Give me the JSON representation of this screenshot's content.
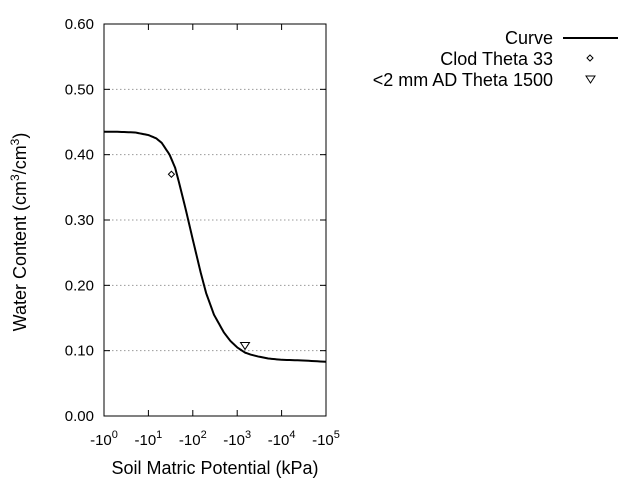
{
  "chart_data": {
    "type": "line",
    "xlabel": "Soil Matric Potential (kPa)",
    "ylabel_main": "Water Content (cm",
    "ylabel_sup1": "3",
    "ylabel_mid": "/cm",
    "ylabel_sup2": "3",
    "ylabel_end": ")",
    "x_scale": "log",
    "xlim": [
      1,
      100000
    ],
    "ylim": [
      0,
      0.6
    ],
    "grid": "horizontal-dotted",
    "legend_position": "top-right",
    "x_ticks": [
      {
        "value": 1,
        "base": "-10",
        "exp": "0"
      },
      {
        "value": 10,
        "base": "-10",
        "exp": "1"
      },
      {
        "value": 100,
        "base": "-10",
        "exp": "2"
      },
      {
        "value": 1000,
        "base": "-10",
        "exp": "3"
      },
      {
        "value": 10000,
        "base": "-10",
        "exp": "4"
      },
      {
        "value": 100000,
        "base": "-10",
        "exp": "5"
      }
    ],
    "y_ticks": [
      {
        "value": 0.0,
        "label": "0.00"
      },
      {
        "value": 0.1,
        "label": "0.10"
      },
      {
        "value": 0.2,
        "label": "0.20"
      },
      {
        "value": 0.3,
        "label": "0.30"
      },
      {
        "value": 0.4,
        "label": "0.40"
      },
      {
        "value": 0.5,
        "label": "0.50"
      },
      {
        "value": 0.6,
        "label": "0.60"
      }
    ],
    "series": [
      {
        "name": "Curve",
        "type": "line",
        "color": "#000000",
        "x": [
          1,
          2,
          5,
          10,
          15,
          20,
          30,
          40,
          50,
          70,
          100,
          150,
          200,
          300,
          500,
          700,
          1000,
          1500,
          2000,
          3000,
          5000,
          10000,
          30000,
          100000
        ],
        "y": [
          0.435,
          0.435,
          0.434,
          0.43,
          0.425,
          0.418,
          0.4,
          0.38,
          0.355,
          0.315,
          0.27,
          0.22,
          0.188,
          0.155,
          0.128,
          0.115,
          0.105,
          0.097,
          0.094,
          0.091,
          0.088,
          0.086,
          0.085,
          0.083
        ]
      },
      {
        "name": "Clod Theta 33",
        "type": "scatter",
        "marker": "diamond",
        "x": [
          33
        ],
        "y": [
          0.37
        ]
      },
      {
        "name": "<2 mm AD Theta 1500",
        "type": "scatter",
        "marker": "triangle-down",
        "x": [
          1500
        ],
        "y": [
          0.108
        ]
      }
    ]
  }
}
